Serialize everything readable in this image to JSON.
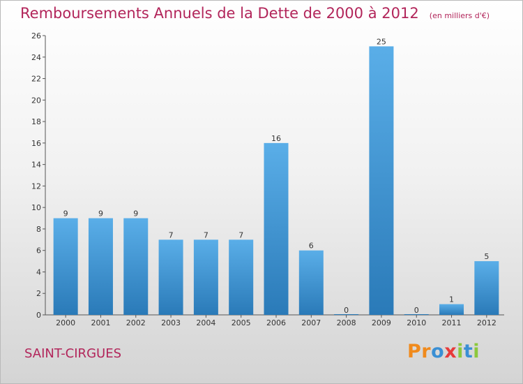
{
  "header": {
    "title": "Remboursements Annuels de la Dette de 2000 à 2012",
    "unit": "(en milliers d'€)"
  },
  "footer": {
    "commune": "SAINT-CIRGUES",
    "logo_text": "Proxiti"
  },
  "colors": {
    "title": "#b2255a",
    "bar_top": "#5aaee8",
    "bar_bottom": "#2a7ab8",
    "logo": [
      "#f08a1c",
      "#f08a1c",
      "#3a8fd4",
      "#e83a3a",
      "#8cc83c",
      "#3a8fd4",
      "#8cc83c"
    ]
  },
  "chart_data": {
    "type": "bar",
    "title": "Remboursements Annuels de la Dette de 2000 à 2012",
    "categories": [
      "2000",
      "2001",
      "2002",
      "2003",
      "2004",
      "2005",
      "2006",
      "2007",
      "2008",
      "2009",
      "2010",
      "2011",
      "2012"
    ],
    "values": [
      9,
      9,
      9,
      7,
      7,
      7,
      16,
      6,
      0,
      25,
      0,
      1,
      5
    ],
    "ylim": [
      0,
      26
    ],
    "yticks": [
      0,
      2,
      4,
      6,
      8,
      10,
      12,
      14,
      16,
      18,
      20,
      22,
      24,
      26
    ],
    "grid": false,
    "data_labels": true
  }
}
